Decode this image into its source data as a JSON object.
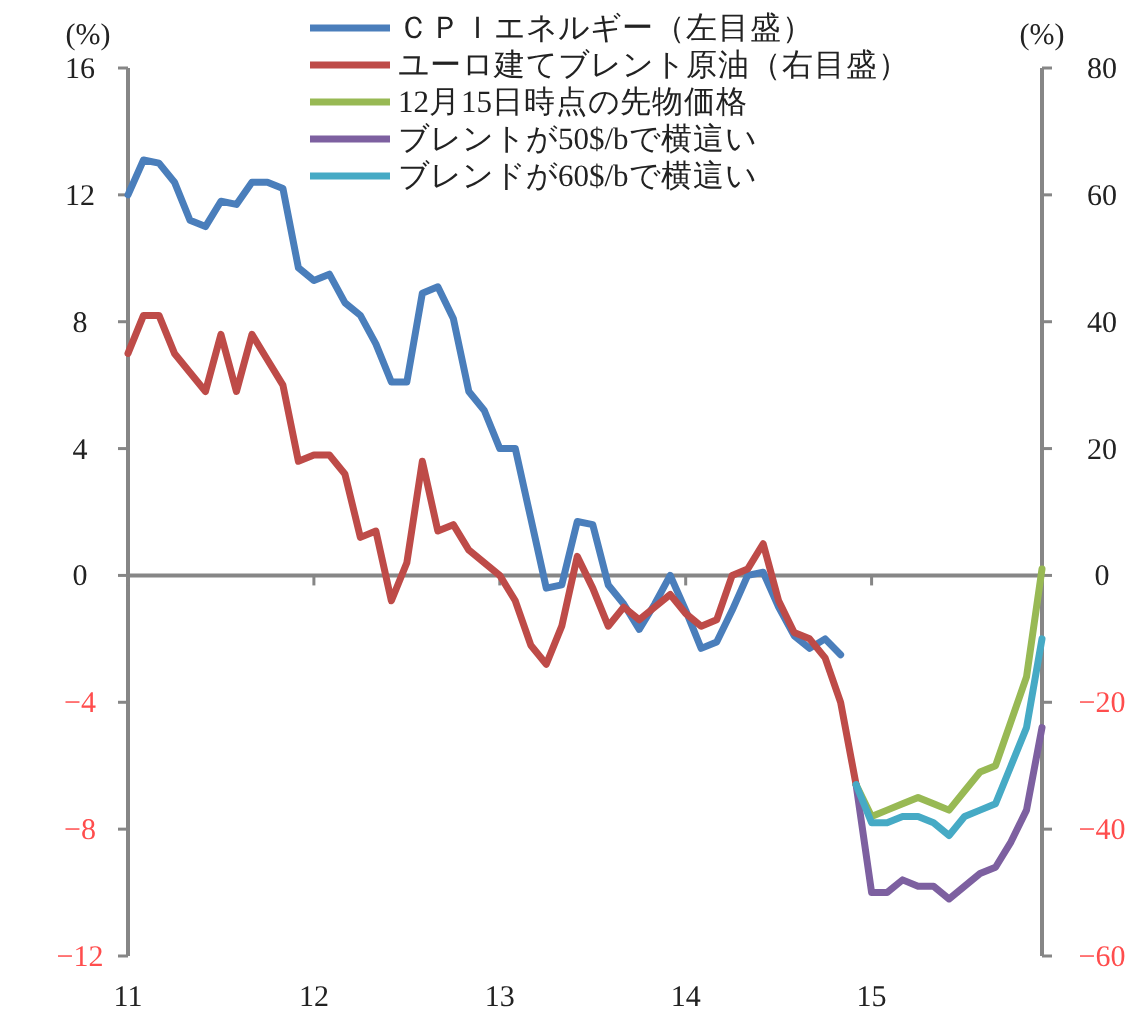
{
  "chart_data": {
    "type": "line",
    "ylabel": "(%)",
    "y2label": "(%)",
    "xlim": [
      "2011-01",
      "2015-12"
    ],
    "xticks": [
      {
        "value": "2011-01",
        "label": "11"
      },
      {
        "value": "2012-01",
        "label": "12"
      },
      {
        "value": "2013-01",
        "label": "13"
      },
      {
        "value": "2014-01",
        "label": "14"
      },
      {
        "value": "2015-01",
        "label": "15"
      }
    ],
    "ylim": [
      -12,
      16
    ],
    "yticks": [
      -12,
      -8,
      -4,
      0,
      4,
      8,
      12,
      16
    ],
    "y2lim": [
      -60,
      80
    ],
    "y2ticks": [
      -60,
      -40,
      -20,
      0,
      20,
      40,
      60,
      80
    ],
    "legend": "top",
    "series": [
      {
        "name": "ＣＰＩエネルギー（左目盛）",
        "color": "#4a7ebb",
        "x": [
          "2011-01",
          "2011-02",
          "2011-03",
          "2011-04",
          "2011-05",
          "2011-06",
          "2011-07",
          "2011-08",
          "2011-09",
          "2011-10",
          "2011-11",
          "2011-12",
          "2012-01",
          "2012-02",
          "2012-03",
          "2012-04",
          "2012-05",
          "2012-06",
          "2012-07",
          "2012-08",
          "2012-09",
          "2012-10",
          "2012-11",
          "2012-12",
          "2013-01",
          "2013-02",
          "2013-03",
          "2013-04",
          "2013-05",
          "2013-06",
          "2013-07",
          "2013-08",
          "2013-09",
          "2013-10",
          "2013-11",
          "2013-12",
          "2014-01",
          "2014-02",
          "2014-03",
          "2014-04",
          "2014-05",
          "2014-06",
          "2014-07",
          "2014-08",
          "2014-09",
          "2014-10",
          "2014-11"
        ],
        "values": [
          12.0,
          13.1,
          13.0,
          12.4,
          11.2,
          11.0,
          11.8,
          11.7,
          12.4,
          12.4,
          12.2,
          9.7,
          9.3,
          9.5,
          8.6,
          8.2,
          7.3,
          6.1,
          6.1,
          8.9,
          9.1,
          8.1,
          5.8,
          5.2,
          4.0,
          4.0,
          1.8,
          -0.4,
          -0.3,
          1.7,
          1.6,
          -0.3,
          -0.9,
          -1.7,
          -0.9,
          0.0,
          -1.1,
          -2.3,
          -2.1,
          -1.1,
          0.0,
          0.1,
          -1.0,
          -1.9,
          -2.3,
          -2.0,
          -2.5
        ]
      },
      {
        "name": "ユーロ建てブレント原油（右目盛）",
        "color": "#be4b48",
        "axis": "y2",
        "x": [
          "2011-01",
          "2011-02",
          "2011-03",
          "2011-04",
          "2011-05",
          "2011-06",
          "2011-07",
          "2011-08",
          "2011-09",
          "2011-10",
          "2011-11",
          "2011-12",
          "2012-01",
          "2012-02",
          "2012-03",
          "2012-04",
          "2012-05",
          "2012-06",
          "2012-07",
          "2012-08",
          "2012-09",
          "2012-10",
          "2012-11",
          "2012-12",
          "2013-01",
          "2013-02",
          "2013-03",
          "2013-04",
          "2013-05",
          "2013-06",
          "2013-07",
          "2013-08",
          "2013-09",
          "2013-10",
          "2013-11",
          "2013-12",
          "2014-01",
          "2014-02",
          "2014-03",
          "2014-04",
          "2014-05",
          "2014-06",
          "2014-07",
          "2014-08",
          "2014-09",
          "2014-10",
          "2014-11",
          "2014-12"
        ],
        "values": [
          35,
          41,
          41,
          35,
          32,
          29,
          38,
          29,
          38,
          34,
          30,
          18,
          19,
          19,
          16,
          6,
          7,
          -4,
          2,
          18,
          7,
          8,
          4,
          2,
          0,
          -4,
          -11,
          -14,
          -8,
          3,
          -2,
          -8,
          -5,
          -7,
          -5,
          -3,
          -6,
          -8,
          -7,
          0,
          1,
          5,
          -4,
          -9,
          -10,
          -13,
          -20,
          -33
        ]
      },
      {
        "name": "12月15日時点の先物価格",
        "color": "#98b954",
        "axis": "y2",
        "x": [
          "2014-12",
          "2015-01",
          "2015-02",
          "2015-03",
          "2015-04",
          "2015-05",
          "2015-06",
          "2015-07",
          "2015-08",
          "2015-09",
          "2015-10",
          "2015-11",
          "2015-12"
        ],
        "values": [
          -33,
          -38,
          -37,
          -36,
          -35,
          -36,
          -37,
          -34,
          -31,
          -30,
          -23,
          -16,
          1
        ]
      },
      {
        "name": "ブレントが50$/bで横這い",
        "color": "#7d60a0",
        "axis": "y2",
        "x": [
          "2014-12",
          "2015-01",
          "2015-02",
          "2015-03",
          "2015-04",
          "2015-05",
          "2015-06",
          "2015-07",
          "2015-08",
          "2015-09",
          "2015-10",
          "2015-11",
          "2015-12"
        ],
        "values": [
          -33,
          -50,
          -50,
          -48,
          -49,
          -49,
          -51,
          -49,
          -47,
          -46,
          -42,
          -37,
          -24
        ]
      },
      {
        "name": "ブレンドが60$/bで横這い",
        "color": "#46aac5",
        "axis": "y2",
        "x": [
          "2014-12",
          "2015-01",
          "2015-02",
          "2015-03",
          "2015-04",
          "2015-05",
          "2015-06",
          "2015-07",
          "2015-08",
          "2015-09",
          "2015-10",
          "2015-11",
          "2015-12"
        ],
        "values": [
          -33,
          -39,
          -39,
          -38,
          -38,
          -39,
          -41,
          -38,
          -37,
          -36,
          -30,
          -24,
          -10
        ]
      }
    ]
  }
}
